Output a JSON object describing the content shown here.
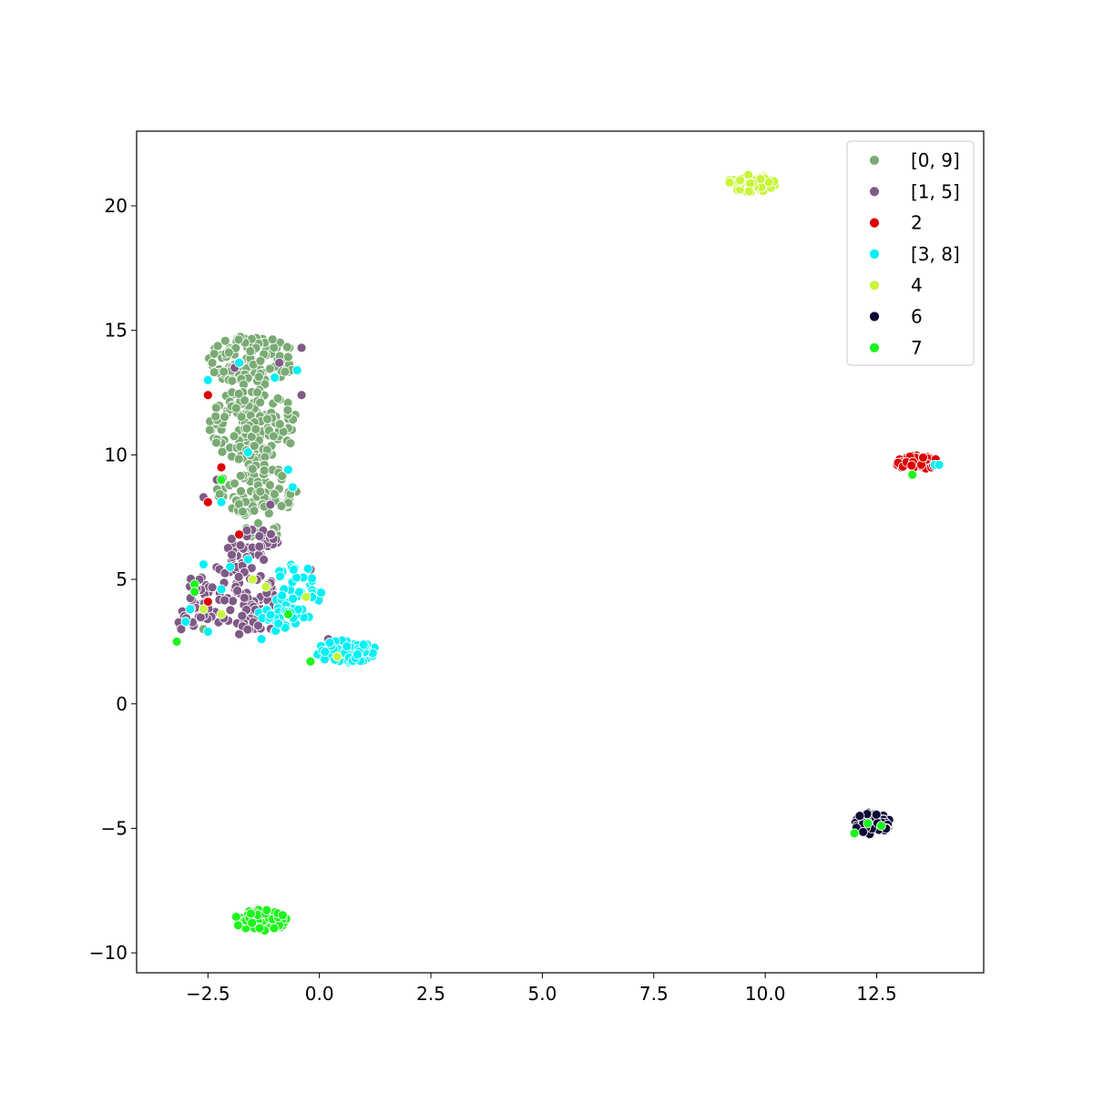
{
  "chart_data": {
    "type": "scatter",
    "title": "",
    "xlabel": "",
    "ylabel": "",
    "xlim": [
      -4.1,
      14.9
    ],
    "ylim": [
      -10.8,
      23.0
    ],
    "x_ticks": [
      -2.5,
      0.0,
      2.5,
      5.0,
      7.5,
      10.0,
      12.5
    ],
    "x_tick_labels": [
      "−2.5",
      "0.0",
      "2.5",
      "5.0",
      "7.5",
      "10.0",
      "12.5"
    ],
    "y_ticks": [
      -10,
      -5,
      0,
      5,
      10,
      15,
      20
    ],
    "y_tick_labels": [
      "−10",
      "−5",
      "0",
      "5",
      "10",
      "15",
      "20"
    ],
    "grid": false,
    "legend_position": "top-right",
    "series": [
      {
        "name": "[0, 9]",
        "color": "#7aab74",
        "clusters": [
          {
            "cx": -1.5,
            "cy": 13.8,
            "rx": 1.0,
            "ry": 1.0,
            "n": 120
          },
          {
            "cx": -1.5,
            "cy": 11.2,
            "rx": 1.0,
            "ry": 1.5,
            "n": 140
          },
          {
            "cx": -1.4,
            "cy": 8.6,
            "rx": 0.9,
            "ry": 1.1,
            "n": 90
          },
          {
            "cx": -1.3,
            "cy": 6.8,
            "rx": 0.5,
            "ry": 0.5,
            "n": 10
          }
        ],
        "points": [
          [
            -2.6,
            3.0
          ],
          [
            -0.5,
            4.4
          ],
          [
            -0.6,
            3.4
          ],
          [
            0.0,
            4.2
          ]
        ]
      },
      {
        "name": "[1, 5]",
        "color": "#7f5a86",
        "clusters": [
          {
            "cx": -1.5,
            "cy": 6.3,
            "rx": 0.6,
            "ry": 0.9,
            "n": 40
          },
          {
            "cx": -2.0,
            "cy": 4.4,
            "rx": 1.1,
            "ry": 1.2,
            "n": 90
          },
          {
            "cx": -1.2,
            "cy": 3.4,
            "rx": 0.7,
            "ry": 0.6,
            "n": 30
          },
          {
            "cx": -2.8,
            "cy": 3.4,
            "rx": 0.4,
            "ry": 0.5,
            "n": 15
          }
        ],
        "points": [
          [
            -2.6,
            8.3
          ],
          [
            -2.3,
            9.0
          ],
          [
            -1.1,
            8.0
          ],
          [
            -1.9,
            13.5
          ],
          [
            -0.4,
            14.3
          ],
          [
            -0.4,
            12.4
          ],
          [
            -0.9,
            13.7
          ],
          [
            0.2,
            2.6
          ],
          [
            -3.1,
            3.0
          ],
          [
            -1.8,
            2.8
          ],
          [
            -0.2,
            5.4
          ]
        ]
      },
      {
        "name": "2",
        "color": "#dd0000",
        "clusters": [
          {
            "cx": 13.4,
            "cy": 9.7,
            "rx": 0.5,
            "ry": 0.28,
            "n": 80
          }
        ],
        "points": [
          [
            -2.5,
            12.4
          ],
          [
            -2.2,
            9.5
          ],
          [
            -1.8,
            6.8
          ],
          [
            -2.5,
            4.1
          ],
          [
            -2.5,
            8.1
          ]
        ]
      },
      {
        "name": "[3, 8]",
        "color": "#00f0f4",
        "clusters": [
          {
            "cx": 0.6,
            "cy": 2.1,
            "rx": 0.7,
            "ry": 0.45,
            "n": 90
          },
          {
            "cx": -0.5,
            "cy": 4.5,
            "rx": 0.6,
            "ry": 1.2,
            "n": 50
          },
          {
            "cx": -1.0,
            "cy": 3.3,
            "rx": 0.5,
            "ry": 0.6,
            "n": 25
          }
        ],
        "points": [
          [
            -2.5,
            13.0
          ],
          [
            -1.8,
            13.7
          ],
          [
            -1.0,
            13.1
          ],
          [
            -0.5,
            13.4
          ],
          [
            -1.6,
            10.1
          ],
          [
            -0.7,
            9.4
          ],
          [
            -2.2,
            8.1
          ],
          [
            -2.9,
            3.8
          ],
          [
            -3.0,
            3.3
          ],
          [
            -2.5,
            2.9
          ],
          [
            -2.2,
            4.6
          ],
          [
            -2.0,
            5.5
          ],
          [
            -1.6,
            5.8
          ],
          [
            13.8,
            9.6
          ],
          [
            13.9,
            9.6
          ],
          [
            -1.3,
            2.6
          ],
          [
            -0.6,
            8.7
          ],
          [
            -2.6,
            5.6
          ]
        ]
      },
      {
        "name": "4",
        "color": "#c8f53a",
        "clusters": [
          {
            "cx": 9.7,
            "cy": 20.9,
            "rx": 0.55,
            "ry": 0.35,
            "n": 60
          }
        ],
        "points": [
          [
            -2.2,
            3.6
          ],
          [
            -1.2,
            4.7
          ],
          [
            -0.3,
            4.3
          ],
          [
            0.4,
            1.9
          ],
          [
            -2.6,
            3.8
          ],
          [
            -1.5,
            5.0
          ]
        ]
      },
      {
        "name": "6",
        "color": "#0a0833",
        "clusters": [
          {
            "cx": 12.4,
            "cy": -4.8,
            "rx": 0.4,
            "ry": 0.45,
            "n": 70
          }
        ],
        "points": [
          [
            -1.4,
            -8.3
          ],
          [
            -1.3,
            -8.6
          ]
        ]
      },
      {
        "name": "7",
        "color": "#1cf51c",
        "clusters": [
          {
            "cx": -1.3,
            "cy": -8.7,
            "rx": 0.6,
            "ry": 0.45,
            "n": 60
          }
        ],
        "points": [
          [
            -3.2,
            2.5
          ],
          [
            -2.8,
            4.8
          ],
          [
            -2.8,
            4.5
          ],
          [
            -0.7,
            3.6
          ],
          [
            -0.2,
            1.7
          ],
          [
            12.0,
            -5.2
          ],
          [
            12.3,
            -4.8
          ],
          [
            12.6,
            -4.9
          ],
          [
            13.3,
            9.2
          ],
          [
            -2.2,
            9.0
          ]
        ]
      }
    ]
  }
}
